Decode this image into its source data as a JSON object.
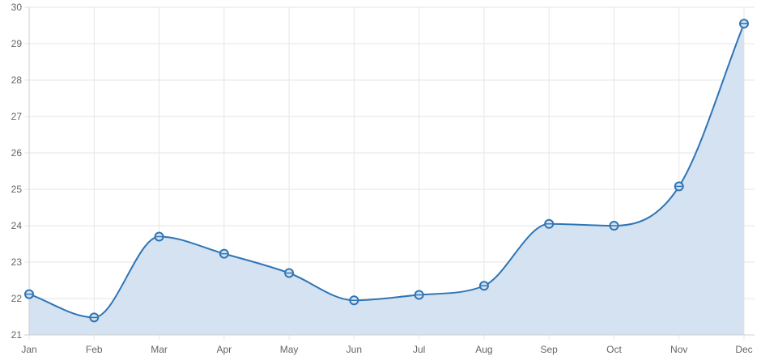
{
  "chart_data": {
    "type": "area",
    "title": "",
    "xlabel": "",
    "ylabel": "",
    "categories": [
      "Jan",
      "Feb",
      "Mar",
      "Apr",
      "May",
      "Jun",
      "Jul",
      "Aug",
      "Sep",
      "Oct",
      "Nov",
      "Dec"
    ],
    "series": [
      {
        "values": [
          22.12,
          21.48,
          23.7,
          23.23,
          22.7,
          21.95,
          22.1,
          22.35,
          24.05,
          24.0,
          25.08,
          29.55
        ]
      }
    ],
    "ylim": [
      21,
      30
    ],
    "y_ticks": [
      21,
      22,
      23,
      24,
      25,
      26,
      27,
      28,
      29,
      30
    ],
    "grid": true,
    "legend": "none",
    "colors": {
      "line": "#2f75b5",
      "fill": "#d4e2f1",
      "grid": "#e6e6e6"
    }
  }
}
